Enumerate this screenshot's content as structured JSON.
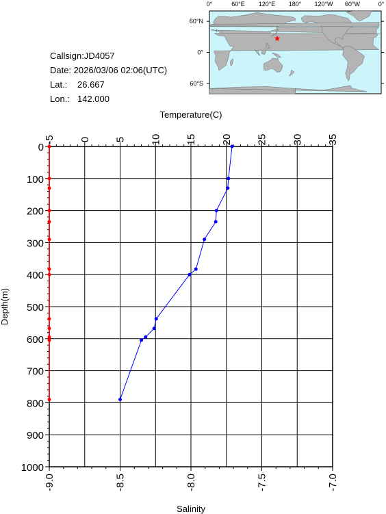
{
  "station": {
    "callsign": "Callsign:JD4057",
    "date": "Date:  2026/03/06 02:06(UTC)",
    "lat_label": "Lat.:",
    "lat_value": "26.667",
    "lon_label": "Lon.:",
    "lon_value": "142.000"
  },
  "map": {
    "top_labels": [
      "0°",
      "60°E",
      "120°E",
      "180°",
      "120°W",
      "60°W",
      "0°"
    ],
    "left_labels": [
      "60°N",
      "0°",
      "60°S"
    ],
    "ocean_color": "#ccf5fb",
    "land_color": "#b4b4b4",
    "marker_color": "#ff0000",
    "marker_lon": 142.0,
    "marker_lat": 26.667
  },
  "chart_data": {
    "type": "line",
    "ylabel": "Depth(m)",
    "temperature_axis_label": "Temperature(C)",
    "salinity_axis_label": "Salinity",
    "depth_range": [
      0,
      1000
    ],
    "depth_ticks": [
      "0",
      "100",
      "200",
      "300",
      "400",
      "500",
      "600",
      "700",
      "800",
      "900",
      "1000"
    ],
    "temperature_range": [
      -5,
      35
    ],
    "temperature_ticks": [
      "-5",
      "0",
      "5",
      "10",
      "15",
      "20",
      "25",
      "30",
      "35"
    ],
    "salinity_range": [
      -9.0,
      -7.0
    ],
    "salinity_ticks": [
      "-9.0",
      "-8.5",
      "-8.0",
      "-7.5",
      "-7.0"
    ],
    "grid": true,
    "temperature_color": "#0000ff",
    "salinity_color": "#ff0000",
    "temperature": {
      "depth": [
        0,
        100,
        130,
        200,
        235,
        290,
        383,
        400,
        538,
        568,
        595,
        605,
        790
      ],
      "value": [
        20.8,
        20.3,
        20.2,
        18.6,
        18.5,
        16.9,
        15.7,
        14.8,
        10.1,
        9.8,
        8.6,
        8.0,
        5.0
      ]
    },
    "salinity": {
      "depth": [
        0,
        100,
        130,
        200,
        235,
        290,
        383,
        400,
        538,
        568,
        595,
        605,
        790
      ],
      "value": [
        -9.0,
        -9.0,
        -9.0,
        -9.0,
        -9.0,
        -9.0,
        -9.0,
        -9.0,
        -9.0,
        -9.0,
        -9.0,
        -9.0,
        -9.0
      ]
    }
  }
}
